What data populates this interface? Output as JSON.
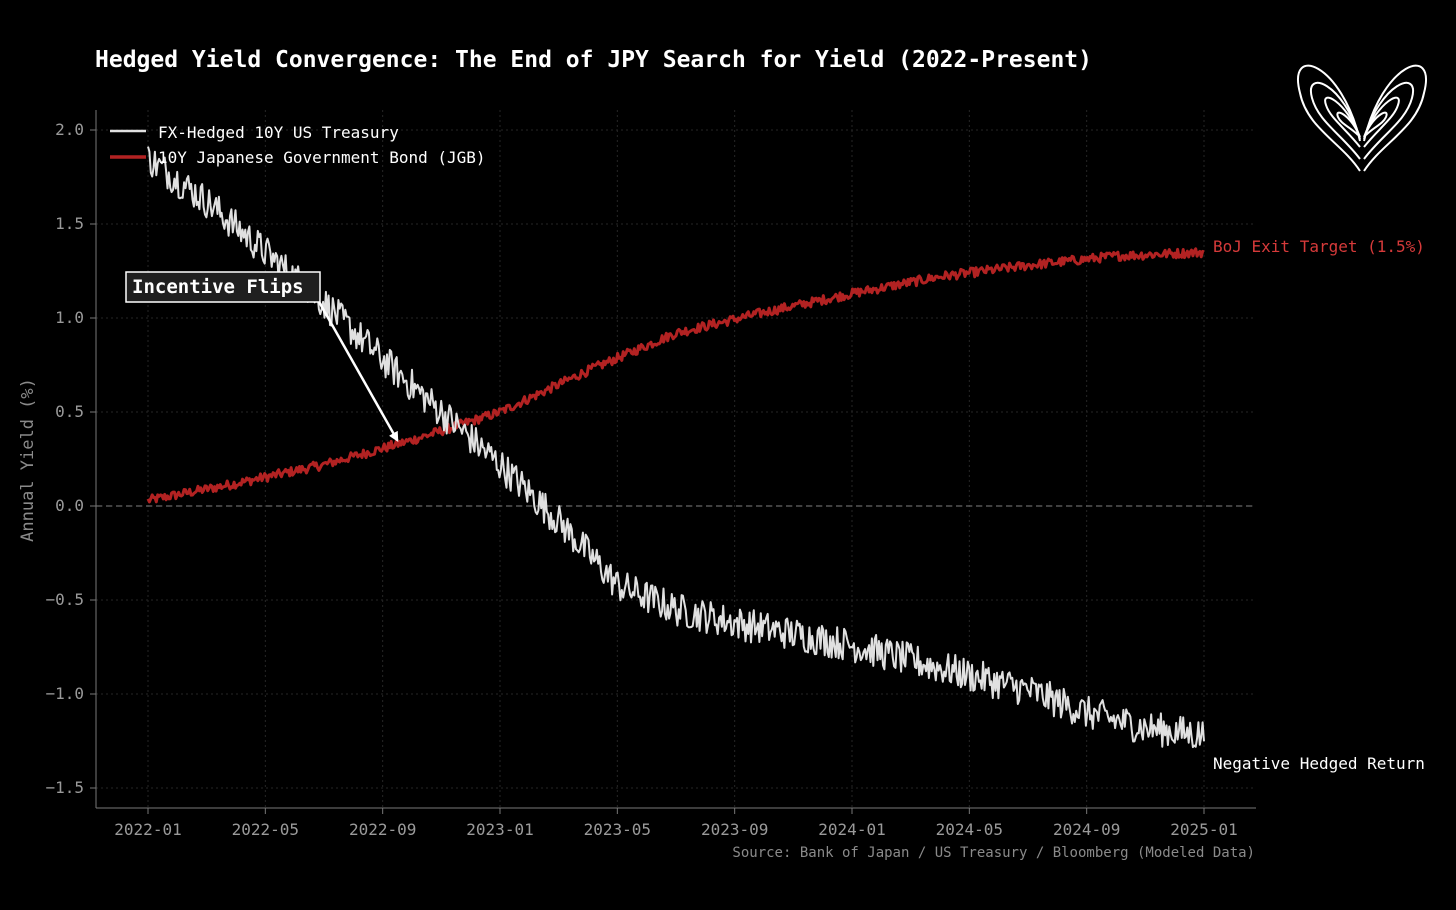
{
  "chart_data": {
    "type": "line",
    "title": "Hedged Yield Convergence: The End of JPY Search for Yield (2022-Present)",
    "xlabel": "",
    "ylabel": "Annual Yield (%)",
    "ylim": [
      -1.6,
      2.1
    ],
    "x_ticks": [
      "2022-01",
      "2022-05",
      "2022-09",
      "2023-01",
      "2023-05",
      "2023-09",
      "2024-01",
      "2024-05",
      "2024-09",
      "2025-01"
    ],
    "y_ticks": [
      2.0,
      1.5,
      1.0,
      0.5,
      0.0,
      -0.5,
      -1.0,
      -1.5
    ],
    "y_tick_labels": [
      "2.0",
      "1.5",
      "1.0",
      "0.5",
      "0.0",
      "−0.5",
      "−1.0",
      "−1.5"
    ],
    "x_range_months": [
      0,
      36
    ],
    "grid": true,
    "legend_position": "top-left",
    "series": [
      {
        "name": "FX-Hedged 10Y US Treasury",
        "color": "#e0e0e0",
        "noise": 0.09,
        "points": [
          {
            "month": 0,
            "value": 1.85
          },
          {
            "month": 2,
            "value": 1.62
          },
          {
            "month": 4,
            "value": 1.35
          },
          {
            "month": 6,
            "value": 1.08
          },
          {
            "month": 8,
            "value": 0.78
          },
          {
            "month": 10,
            "value": 0.5
          },
          {
            "month": 12,
            "value": 0.22
          },
          {
            "month": 14,
            "value": -0.08
          },
          {
            "month": 16,
            "value": -0.42
          },
          {
            "month": 18,
            "value": -0.55
          },
          {
            "month": 20,
            "value": -0.62
          },
          {
            "month": 22,
            "value": -0.68
          },
          {
            "month": 24,
            "value": -0.74
          },
          {
            "month": 26,
            "value": -0.82
          },
          {
            "month": 28,
            "value": -0.9
          },
          {
            "month": 30,
            "value": -0.98
          },
          {
            "month": 32,
            "value": -1.1
          },
          {
            "month": 34,
            "value": -1.18
          },
          {
            "month": 36,
            "value": -1.22
          }
        ]
      },
      {
        "name": "10Y Japanese Government Bond (JGB)",
        "color": "#b22222",
        "noise": 0.025,
        "points": [
          {
            "month": 0,
            "value": 0.03
          },
          {
            "month": 3,
            "value": 0.12
          },
          {
            "month": 6,
            "value": 0.22
          },
          {
            "month": 9,
            "value": 0.35
          },
          {
            "month": 12,
            "value": 0.5
          },
          {
            "month": 15,
            "value": 0.72
          },
          {
            "month": 18,
            "value": 0.92
          },
          {
            "month": 21,
            "value": 1.03
          },
          {
            "month": 24,
            "value": 1.13
          },
          {
            "month": 27,
            "value": 1.22
          },
          {
            "month": 30,
            "value": 1.28
          },
          {
            "month": 33,
            "value": 1.33
          },
          {
            "month": 36,
            "value": 1.35
          }
        ]
      }
    ],
    "annotations": [
      {
        "text": "Incentive Flips",
        "arrow_to_month": 8.5,
        "arrow_to_value": 0.35
      },
      {
        "text": "BoJ Exit Target (1.5%)",
        "series": "10Y Japanese Government Bond (JGB)"
      },
      {
        "text": "Negative Hedged Return",
        "series": "FX-Hedged 10Y US Treasury"
      }
    ],
    "source": "Source: Bank of Japan / US Treasury / Bloomberg (Modeled Data)"
  }
}
